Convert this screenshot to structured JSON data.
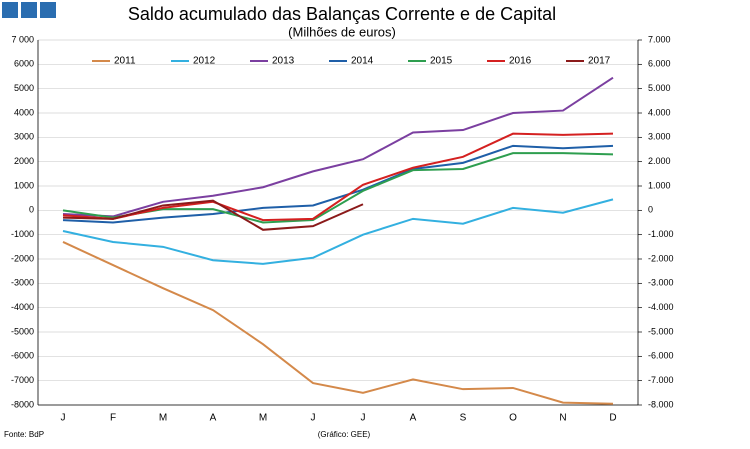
{
  "chart_data": {
    "type": "line",
    "title": "Saldo acumulado das Balanças Corrente e de Capital",
    "subtitle": "(Milhões de euros)",
    "source": "Fonte: BdP",
    "credit": "(Gráfico: GEE)",
    "categories": [
      "J",
      "F",
      "M",
      "A",
      "M",
      "J",
      "J",
      "A",
      "S",
      "O",
      "N",
      "D"
    ],
    "ylim": [
      -8000,
      7000
    ],
    "yticks": [
      -8000,
      -7000,
      -6000,
      -5000,
      -4000,
      -3000,
      -2000,
      -1000,
      0,
      1000,
      2000,
      3000,
      4000,
      5000,
      6000,
      {
        "value": 7000,
        "label": "7 000"
      }
    ],
    "y2lim": [
      -8000,
      7000
    ],
    "y2ticks": [
      {
        "value": -8000,
        "label": "-8.000"
      },
      {
        "value": -7000,
        "label": "-7.000"
      },
      {
        "value": -6000,
        "label": "-6.000"
      },
      {
        "value": -5000,
        "label": "-5.000"
      },
      {
        "value": -4000,
        "label": "-4.000"
      },
      {
        "value": -3000,
        "label": "-3.000"
      },
      {
        "value": -2000,
        "label": "-2.000"
      },
      {
        "value": -1000,
        "label": "-1.000"
      },
      0,
      {
        "value": 1000,
        "label": "1.000"
      },
      {
        "value": 2000,
        "label": "2.000"
      },
      {
        "value": 3000,
        "label": "3.000"
      },
      {
        "value": 4000,
        "label": "4.000"
      },
      {
        "value": 5000,
        "label": "5.000"
      },
      {
        "value": 6000,
        "label": "6.000"
      },
      {
        "value": 7000,
        "label": "7.000"
      }
    ],
    "grid": true,
    "legend": "top",
    "series": [
      {
        "name": "2011",
        "color": "#d4894a",
        "values": [
          -1300,
          -2250,
          -3200,
          -4100,
          -5500,
          -7100,
          -7500,
          -6950,
          -7350,
          -7300,
          -7900,
          -7950
        ]
      },
      {
        "name": "2012",
        "color": "#33b0e0",
        "values": [
          -850,
          -1300,
          -1500,
          -2050,
          -2200,
          -1950,
          -1000,
          -350,
          -550,
          100,
          -100,
          450
        ]
      },
      {
        "name": "2013",
        "color": "#7b3fa0",
        "values": [
          -150,
          -250,
          350,
          600,
          950,
          1600,
          2100,
          3200,
          3300,
          4000,
          4100,
          5450
        ]
      },
      {
        "name": "2014",
        "color": "#1f5fa8",
        "values": [
          -400,
          -500,
          -300,
          -150,
          100,
          200,
          850,
          1700,
          1950,
          2650,
          2550,
          2650
        ]
      },
      {
        "name": "2015",
        "color": "#2e9e4f",
        "values": [
          0,
          -300,
          50,
          50,
          -500,
          -400,
          800,
          1650,
          1700,
          2350,
          2350,
          2300
        ]
      },
      {
        "name": "2016",
        "color": "#d42020",
        "values": [
          -200,
          -350,
          100,
          350,
          -400,
          -350,
          1050,
          1750,
          2200,
          3150,
          3100,
          3150
        ]
      },
      {
        "name": "2017",
        "color": "#8b1a1a",
        "values": [
          -300,
          -350,
          200,
          400,
          -800,
          -650,
          250,
          null,
          null,
          null,
          null,
          null
        ]
      }
    ]
  }
}
